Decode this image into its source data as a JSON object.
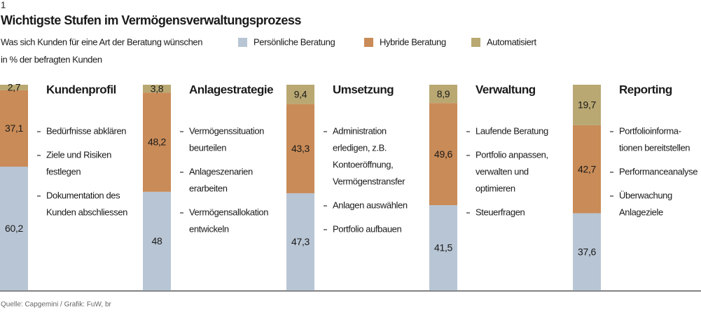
{
  "chart_data": {
    "type": "bar",
    "stacked": true,
    "figure_number": "1",
    "title": "Wichtigste Stufen im Vermögensverwaltungsprozess",
    "subtitle": "Was sich Kunden für eine Art der Beratung wünschen",
    "unit_label": "in % der befragten Kunden",
    "source": "Quelle: Capgemini / Grafik: FuW, br",
    "categories": [
      "Kundenprofil",
      "Anlagestrategie",
      "Umsetzung",
      "Verwaltung",
      "Reporting"
    ],
    "ylim": [
      0,
      100
    ],
    "series": [
      {
        "name": "Persönliche Beratung",
        "color": "#b8c5d4",
        "values": [
          60.2,
          48,
          47.3,
          41.5,
          37.6
        ],
        "value_labels": [
          "60,2",
          "48",
          "47,3",
          "41,5",
          "37,6"
        ]
      },
      {
        "name": "Hybride Beratung",
        "color": "#c98b57",
        "values": [
          37.1,
          48.2,
          43.3,
          49.6,
          42.7
        ],
        "value_labels": [
          "37,1",
          "48,2",
          "43,3",
          "49,6",
          "42,7"
        ]
      },
      {
        "name": "Automatisiert",
        "color": "#b9a872",
        "values": [
          2.7,
          3.8,
          9.4,
          8.9,
          19.7
        ],
        "value_labels": [
          "2,7",
          "3,8",
          "9,4",
          "8,9",
          "19,7"
        ]
      }
    ],
    "bullets": [
      [
        [
          "Bedürfnisse abklären"
        ],
        [
          "Ziele und Risiken",
          "festlegen"
        ],
        [
          "Dokumentation des",
          "Kunden abschliessen"
        ]
      ],
      [
        [
          "Vermögenssituation",
          "beurteilen"
        ],
        [
          "Anlageszenarien",
          "erarbeiten"
        ],
        [
          "Vermögensallokation",
          "entwickeln"
        ]
      ],
      [
        [
          "Administration",
          "erledigen, z.B.",
          "Kontoeröffnung,",
          "Vermögenstransfer"
        ],
        [
          "Anlagen auswählen"
        ],
        [
          "Portfolio aufbauen"
        ]
      ],
      [
        [
          "Laufende Beratung"
        ],
        [
          "Portfolio anpassen,",
          "verwalten und",
          "optimieren"
        ],
        [
          "Steuerfragen"
        ]
      ],
      [
        [
          "Portfolioinforma-",
          "tionen bereitstellen"
        ],
        [
          "Performanceanalyse"
        ],
        [
          "Überwachung",
          "Anlageziele"
        ]
      ]
    ]
  }
}
